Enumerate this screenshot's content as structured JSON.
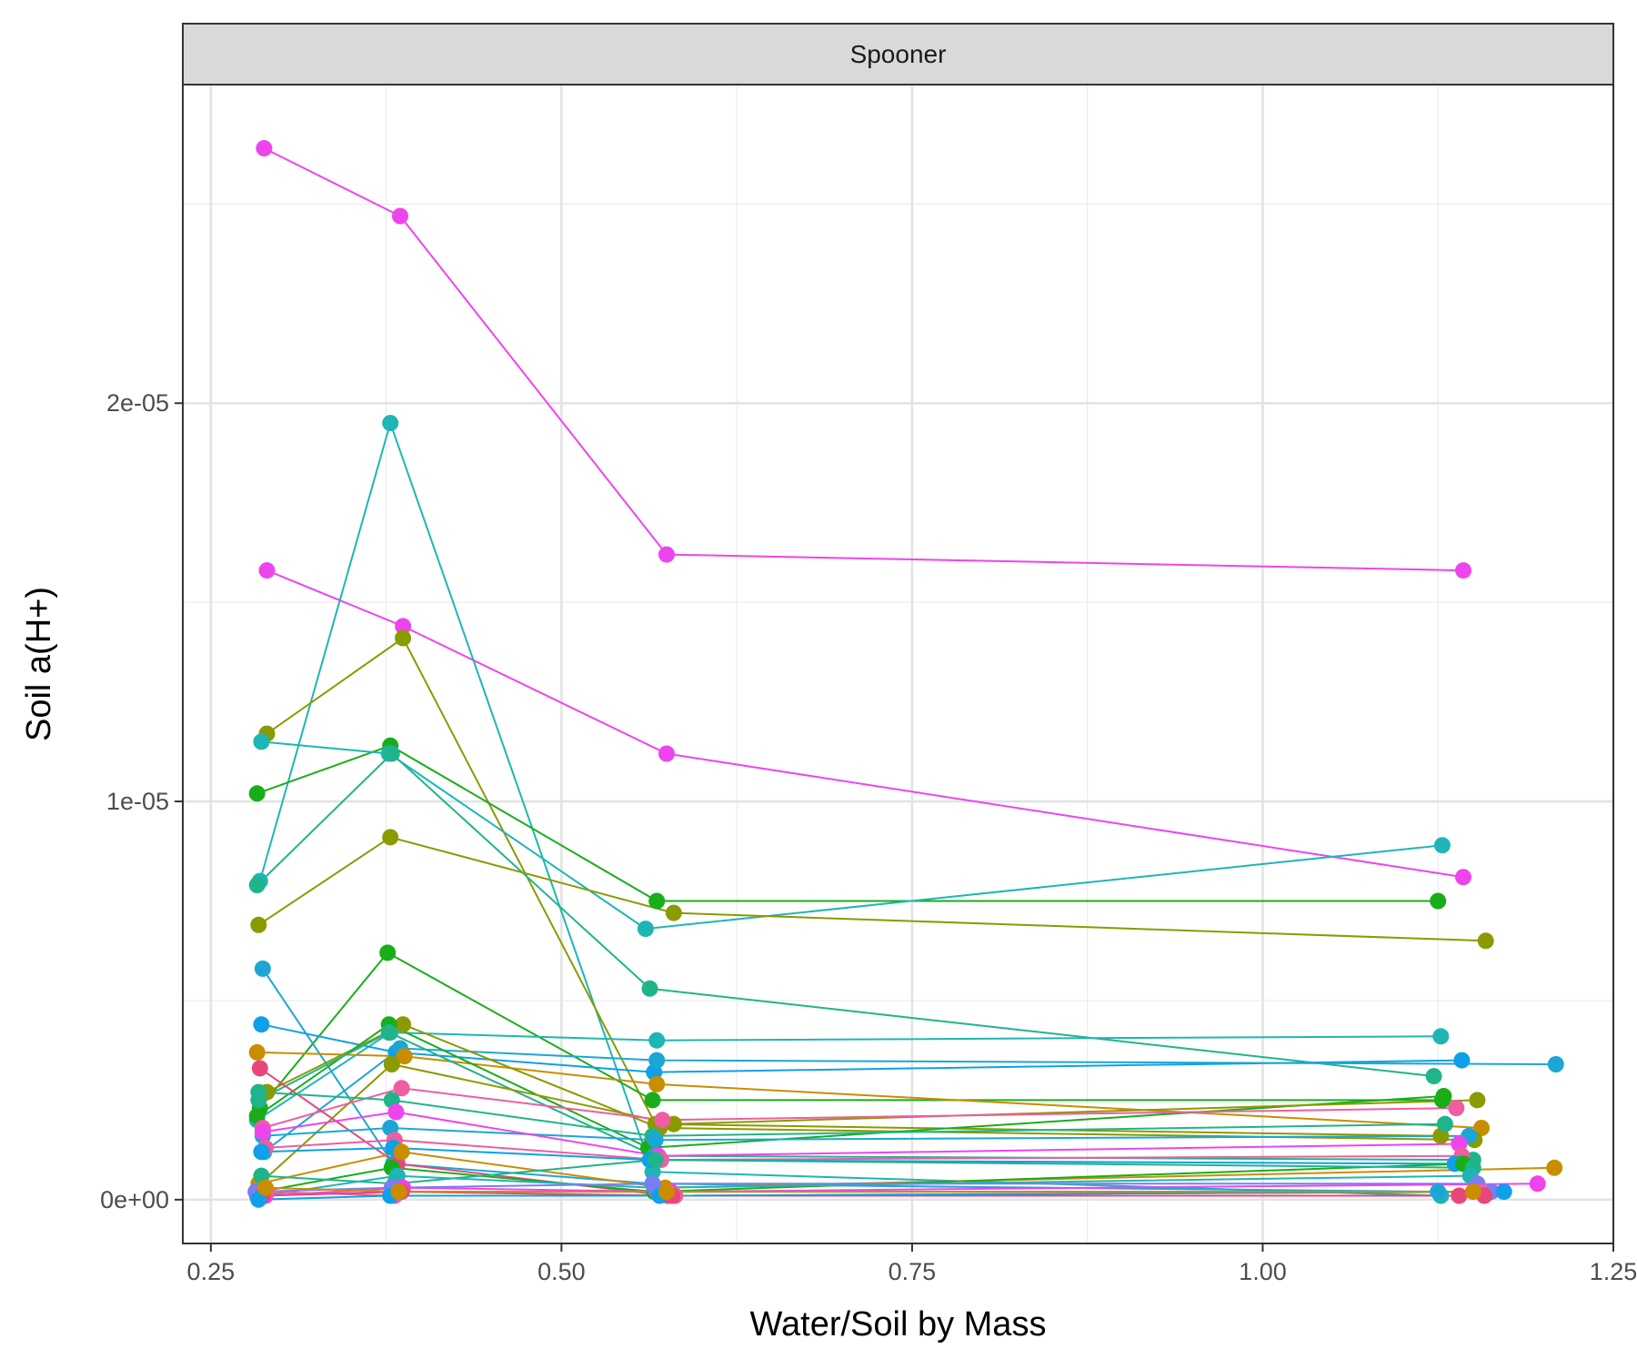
{
  "chart_data": {
    "type": "line",
    "title": "",
    "facet_label": "Spooner",
    "xlabel": "Water/Soil by Mass",
    "ylabel": "Soil a(H+)",
    "xlim": [
      0.23,
      1.25
    ],
    "ylim": [
      -1.1e-06,
      2.8e-05
    ],
    "x_ticks": [
      0.25,
      0.5,
      0.75,
      1.0,
      1.25
    ],
    "x_tick_labels": [
      "0.25",
      "0.50",
      "0.75",
      "1.00",
      "1.25"
    ],
    "y_ticks": [
      0,
      1e-05,
      2e-05
    ],
    "y_tick_labels": [
      "0e+00",
      "1e-05",
      "2e-05"
    ],
    "grid": true,
    "legend": "none",
    "series": [
      {
        "color": "#ee44ee",
        "x": [
          0.288,
          0.385,
          0.575,
          1.143
        ],
        "y": [
          2.64e-05,
          2.47e-05,
          1.62e-05,
          1.58e-05
        ]
      },
      {
        "color": "#ee44ee",
        "x": [
          0.29,
          0.387,
          0.575,
          1.143
        ],
        "y": [
          1.58e-05,
          1.44e-05,
          1.12e-05,
          8.1e-06
        ]
      },
      {
        "color": "#1fb5b5",
        "x": [
          0.285,
          0.378,
          0.565,
          1.127
        ],
        "y": [
          8e-06,
          1.95e-05,
          7e-07,
          1e-07
        ]
      },
      {
        "color": "#8b9a00",
        "x": [
          0.29,
          0.387,
          0.567,
          1.127
        ],
        "y": [
          1.17e-05,
          1.41e-05,
          1.9e-06,
          1.6e-06
        ]
      },
      {
        "color": "#1aad1a",
        "x": [
          0.283,
          0.378,
          0.568,
          1.125
        ],
        "y": [
          1.02e-05,
          1.14e-05,
          7.5e-06,
          7.5e-06
        ]
      },
      {
        "color": "#1fb5b5",
        "x": [
          0.286,
          0.377,
          0.56,
          1.128
        ],
        "y": [
          1.15e-05,
          1.12e-05,
          6.8e-06,
          8.9e-06
        ]
      },
      {
        "color": "#20b48a",
        "x": [
          0.283,
          0.379,
          0.563,
          1.122
        ],
        "y": [
          7.9e-06,
          1.12e-05,
          5.3e-06,
          3.1e-06
        ]
      },
      {
        "color": "#8b9a00",
        "x": [
          0.284,
          0.378,
          0.58,
          1.159
        ],
        "y": [
          6.9e-06,
          9.1e-06,
          7.2e-06,
          6.5e-06
        ]
      },
      {
        "color": "#1aad1a",
        "x": [
          0.285,
          0.376,
          0.565,
          1.128
        ],
        "y": [
          2.3e-06,
          6.2e-06,
          2.5e-06,
          2.5e-06
        ]
      },
      {
        "color": "#1ca6d6",
        "x": [
          0.287,
          0.38,
          0.565,
          1.125
        ],
        "y": [
          5.8e-06,
          9e-07,
          4e-07,
          2e-07
        ]
      },
      {
        "color": "#1fb5b5",
        "x": [
          0.283,
          0.378,
          0.568,
          1.127
        ],
        "y": [
          2e-06,
          4.2e-06,
          4e-06,
          4.1e-06
        ]
      },
      {
        "color": "#0ea0e8",
        "x": [
          0.286,
          0.382,
          0.566,
          1.142
        ],
        "y": [
          4.4e-06,
          3.7e-06,
          3.2e-06,
          3.5e-06
        ]
      },
      {
        "color": "#1ca6d6",
        "x": [
          0.288,
          0.385,
          0.568,
          1.209
        ],
        "y": [
          1.2e-06,
          3.8e-06,
          3.5e-06,
          3.4e-06
        ]
      },
      {
        "color": "#c98e00",
        "x": [
          0.283,
          0.388,
          0.568,
          1.156
        ],
        "y": [
          3.7e-06,
          3.6e-06,
          2.9e-06,
          1.8e-06
        ]
      },
      {
        "color": "#8b9a00",
        "x": [
          0.29,
          0.387,
          0.57,
          1.151
        ],
        "y": [
          2.7e-06,
          4.4e-06,
          1.8e-06,
          1.5e-06
        ]
      },
      {
        "color": "#1aad1a",
        "x": [
          0.283,
          0.377,
          0.562,
          1.129
        ],
        "y": [
          2.1e-06,
          4.4e-06,
          1.3e-06,
          2.6e-06
        ]
      },
      {
        "color": "#20b48a",
        "x": [
          0.284,
          0.377,
          0.566,
          1.15
        ],
        "y": [
          2.5e-06,
          4.2e-06,
          1.1e-06,
          1e-06
        ]
      },
      {
        "color": "#8b9a00",
        "x": [
          0.285,
          0.379,
          0.58,
          1.153
        ],
        "y": [
          4e-07,
          3.4e-06,
          1.9e-06,
          2.5e-06
        ]
      },
      {
        "color": "#ee5ea0",
        "x": [
          0.287,
          0.386,
          0.572,
          1.138
        ],
        "y": [
          1.8e-06,
          2.8e-06,
          2e-06,
          2.3e-06
        ]
      },
      {
        "color": "#e8477a",
        "x": [
          0.285,
          0.383,
          0.576,
          1.14
        ],
        "y": [
          3.3e-06,
          9e-07,
          1e-07,
          1e-07
        ]
      },
      {
        "color": "#20b48a",
        "x": [
          0.284,
          0.379,
          0.565,
          1.13
        ],
        "y": [
          2.7e-06,
          2.5e-06,
          1.6e-06,
          1.9e-06
        ]
      },
      {
        "color": "#1ca6d6",
        "x": [
          0.287,
          0.378,
          0.567,
          1.147
        ],
        "y": [
          1.6e-06,
          1.8e-06,
          1.5e-06,
          1.6e-06
        ]
      },
      {
        "color": "#ee44ee",
        "x": [
          0.287,
          0.382,
          0.569,
          1.14
        ],
        "y": [
          1.7e-06,
          2.2e-06,
          1.1e-06,
          1.4e-06
        ]
      },
      {
        "color": "#ee5ea0",
        "x": [
          0.289,
          0.381,
          0.571,
          1.142
        ],
        "y": [
          1.3e-06,
          1.5e-06,
          1e-06,
          1.1e-06
        ]
      },
      {
        "color": "#0ea0e8",
        "x": [
          0.286,
          0.38,
          0.563,
          1.137
        ],
        "y": [
          1.2e-06,
          1.3e-06,
          1e-06,
          9e-07
        ]
      },
      {
        "color": "#c98e00",
        "x": [
          0.284,
          0.386,
          0.574,
          1.208
        ],
        "y": [
          4e-07,
          1.2e-06,
          3e-07,
          8e-07
        ]
      },
      {
        "color": "#1aad1a",
        "x": [
          0.285,
          0.379,
          0.566,
          1.143
        ],
        "y": [
          2e-07,
          8e-07,
          2e-07,
          9e-07
        ]
      },
      {
        "color": "#20b48a",
        "x": [
          0.286,
          0.381,
          0.567,
          1.15
        ],
        "y": [
          6e-07,
          4e-07,
          1e-06,
          8e-07
        ]
      },
      {
        "color": "#1fb5b5",
        "x": [
          0.287,
          0.383,
          0.566,
          1.148
        ],
        "y": [
          1e-07,
          6e-07,
          3e-07,
          6e-07
        ]
      },
      {
        "color": "#7a7ef0",
        "x": [
          0.282,
          0.379,
          0.565,
          1.153
        ],
        "y": [
          2e-07,
          3e-07,
          4e-07,
          4e-07
        ]
      },
      {
        "color": "#7a7ef0",
        "x": [
          0.283,
          0.38,
          0.568,
          1.163
        ],
        "y": [
          1e-07,
          2e-07,
          2e-07,
          2e-07
        ]
      },
      {
        "color": "#ee44ee",
        "x": [
          0.289,
          0.387,
          0.578,
          1.196
        ],
        "y": [
          1e-07,
          3e-07,
          2e-07,
          4e-07
        ]
      },
      {
        "color": "#ee5ea0",
        "x": [
          0.29,
          0.381,
          0.581,
          1.155
        ],
        "y": [
          2e-07,
          1e-07,
          1e-07,
          2e-07
        ]
      },
      {
        "color": "#e8477a",
        "x": [
          0.287,
          0.386,
          0.579,
          1.158
        ],
        "y": [
          1e-07,
          2e-07,
          1e-07,
          1e-07
        ]
      },
      {
        "color": "#0ea0e8",
        "x": [
          0.284,
          0.378,
          0.57,
          1.172
        ],
        "y": [
          0.0,
          1e-07,
          1e-07,
          2e-07
        ]
      },
      {
        "color": "#c98e00",
        "x": [
          0.289,
          0.384,
          0.575,
          1.15
        ],
        "y": [
          3e-07,
          2e-07,
          2e-07,
          2e-07
        ]
      }
    ]
  }
}
